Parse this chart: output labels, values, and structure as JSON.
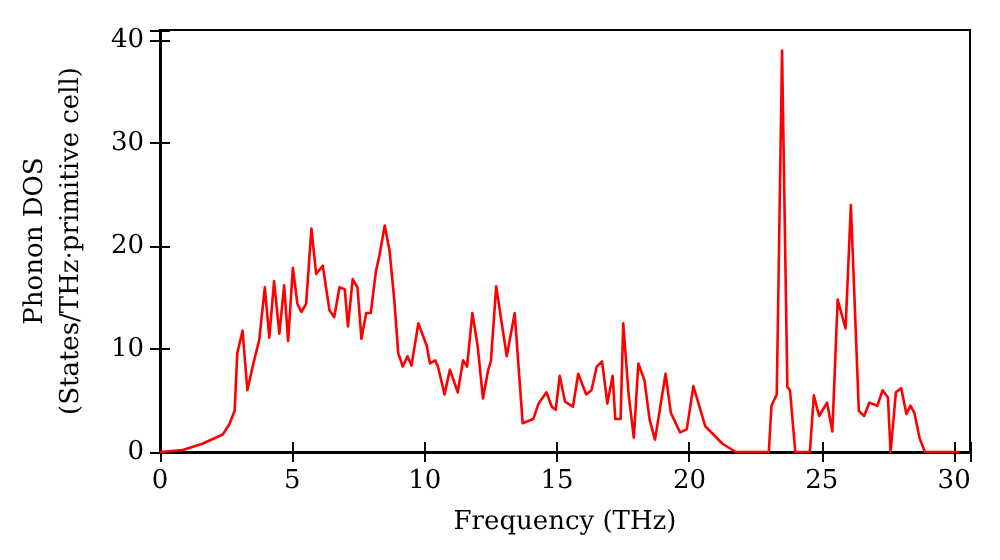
{
  "chart_data": {
    "type": "line",
    "xlabel": "Frequency (THz)",
    "ylabel": "Phonon DOS\n(States/THz·primitive cell)",
    "xlim": [
      0,
      30.6
    ],
    "xticks": [
      0,
      5,
      10,
      15,
      20,
      25,
      30
    ],
    "ylim": [
      0,
      41
    ],
    "yticks": [
      0,
      10,
      20,
      30,
      40
    ],
    "marker": "none",
    "line_style": "solid",
    "series": [
      {
        "color": "#ff0000",
        "x": [
          0,
          0.86,
          1.6,
          2.37,
          2.62,
          2.82,
          2.92,
          3.12,
          3.3,
          3.5,
          3.75,
          3.96,
          4.13,
          4.31,
          4.51,
          4.69,
          4.84,
          5.02,
          5.19,
          5.34,
          5.52,
          5.72,
          5.9,
          6.15,
          6.4,
          6.58,
          6.78,
          6.98,
          7.1,
          7.28,
          7.46,
          7.61,
          7.79,
          7.96,
          8.16,
          8.29,
          8.49,
          8.67,
          8.85,
          9.0,
          9.17,
          9.35,
          9.5,
          9.76,
          10.08,
          10.2,
          10.4,
          10.5,
          10.75,
          10.95,
          11.25,
          11.45,
          11.6,
          11.8,
          12.0,
          12.2,
          12.4,
          12.5,
          12.7,
          13.1,
          13.4,
          13.7,
          14.1,
          14.3,
          14.6,
          14.8,
          14.95,
          15.1,
          15.3,
          15.6,
          15.8,
          16.1,
          16.3,
          16.5,
          16.7,
          16.9,
          17.1,
          17.2,
          17.4,
          17.5,
          17.7,
          17.9,
          18.07,
          18.3,
          18.5,
          18.7,
          19.1,
          19.3,
          19.65,
          19.9,
          20.15,
          20.6,
          21.25,
          21.75,
          23.0,
          23.1,
          23.3,
          23.5,
          23.7,
          23.8,
          24.0,
          24.55,
          24.7,
          24.9,
          25.2,
          25.4,
          25.6,
          25.9,
          26.1,
          26.4,
          26.6,
          26.8,
          27.1,
          27.3,
          27.5,
          27.6,
          27.8,
          28.0,
          28.2,
          28.35,
          28.5,
          28.7,
          28.9,
          30.2
        ],
        "values": [
          0,
          0.2,
          0.8,
          1.7,
          2.7,
          4.0,
          9.6,
          11.8,
          6,
          8.3,
          10.9,
          16,
          11.1,
          16.6,
          11.5,
          16.2,
          10.8,
          17.9,
          14.4,
          13.6,
          14.4,
          21.7,
          17.3,
          18.1,
          13.8,
          13.1,
          16,
          15.8,
          12.2,
          16.8,
          16,
          11,
          13.5,
          13.5,
          17.6,
          19.1,
          22,
          19.6,
          14.8,
          9.6,
          8.3,
          9.3,
          8.4,
          12.5,
          10.3,
          8.6,
          8.9,
          8.3,
          5.6,
          8.0,
          5.8,
          8.9,
          8.3,
          13.5,
          10.3,
          5.2,
          8,
          8.8,
          16.1,
          9.3,
          13.5,
          2.8,
          3.2,
          4.7,
          5.8,
          4.4,
          4.1,
          7.4,
          4.9,
          4.4,
          7.6,
          5.6,
          6.0,
          8.3,
          8.8,
          4.7,
          7.4,
          3.2,
          3.2,
          12.5,
          5.7,
          1.4,
          8.6,
          7,
          3.1,
          1.2,
          7.6,
          3.8,
          1.9,
          2.2,
          6.4,
          2.5,
          0.8,
          0,
          0,
          4.5,
          5.6,
          39,
          6.3,
          6,
          0,
          0,
          5.5,
          3.5,
          4.8,
          2,
          14.8,
          12,
          24,
          4,
          3.5,
          4.8,
          4.5,
          6,
          5.3,
          0,
          5.8,
          6.2,
          3.7,
          4.5,
          3.8,
          1.3,
          0,
          0
        ]
      }
    ]
  }
}
